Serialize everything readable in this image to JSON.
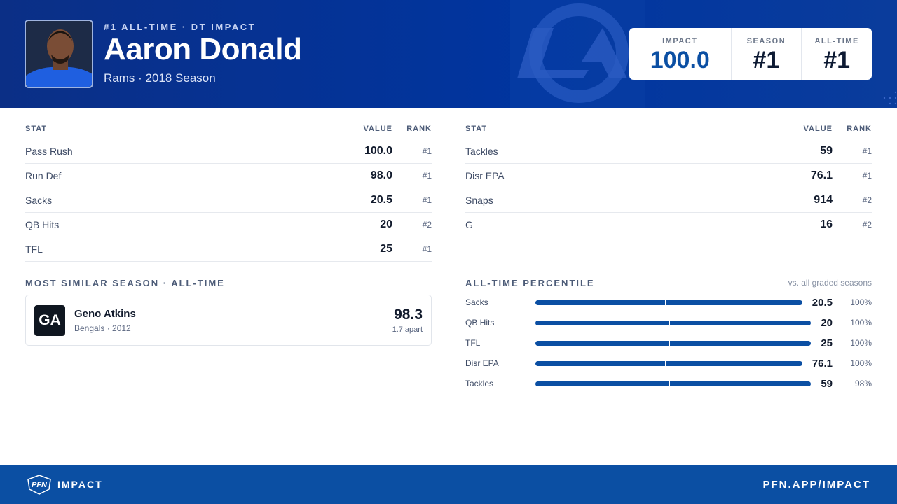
{
  "header": {
    "eyebrow": "#1 ALL-TIME · DT IMPACT",
    "name": "Aaron Donald",
    "subtitle": "Rams · 2018 Season",
    "scores": [
      {
        "label": "IMPACT",
        "value": "100.0"
      },
      {
        "label": "SEASON",
        "value": "#1"
      },
      {
        "label": "ALL-TIME",
        "value": "#1"
      }
    ]
  },
  "stats_left": {
    "columns": [
      "STAT",
      "VALUE",
      "RANK"
    ],
    "rows": [
      [
        "Pass Rush",
        "100.0",
        "#1"
      ],
      [
        "Run Def",
        "98.0",
        "#1"
      ],
      [
        "Sacks",
        "20.5",
        "#1"
      ],
      [
        "QB Hits",
        "20",
        "#2"
      ],
      [
        "TFL",
        "25",
        "#1"
      ]
    ]
  },
  "stats_right": {
    "columns": [
      "STAT",
      "VALUE",
      "RANK"
    ],
    "rows": [
      [
        "Tackles",
        "59",
        "#1"
      ],
      [
        "Disr EPA",
        "76.1",
        "#1"
      ],
      [
        "Snaps",
        "914",
        "#2"
      ],
      [
        "G",
        "16",
        "#2"
      ]
    ]
  },
  "similar": {
    "title": "MOST SIMILAR SEASON · ALL-TIME",
    "initials": "GA",
    "name": "Geno Atkins",
    "detail": "Bengals · 2012",
    "score": "98.3",
    "distance": "1.7 apart"
  },
  "percentile": {
    "title": "ALL-TIME PERCENTILE",
    "note": "vs. all graded seasons",
    "rows": [
      [
        "Sacks",
        "20.5",
        "100%"
      ],
      [
        "QB Hits",
        "20",
        "100%"
      ],
      [
        "TFL",
        "25",
        "100%"
      ],
      [
        "Disr EPA",
        "76.1",
        "100%"
      ],
      [
        "Tackles",
        "59",
        "98%"
      ]
    ]
  },
  "footer": {
    "logo": "PFN",
    "brand": "IMPACT",
    "url": "PFN.APP/IMPACT"
  }
}
